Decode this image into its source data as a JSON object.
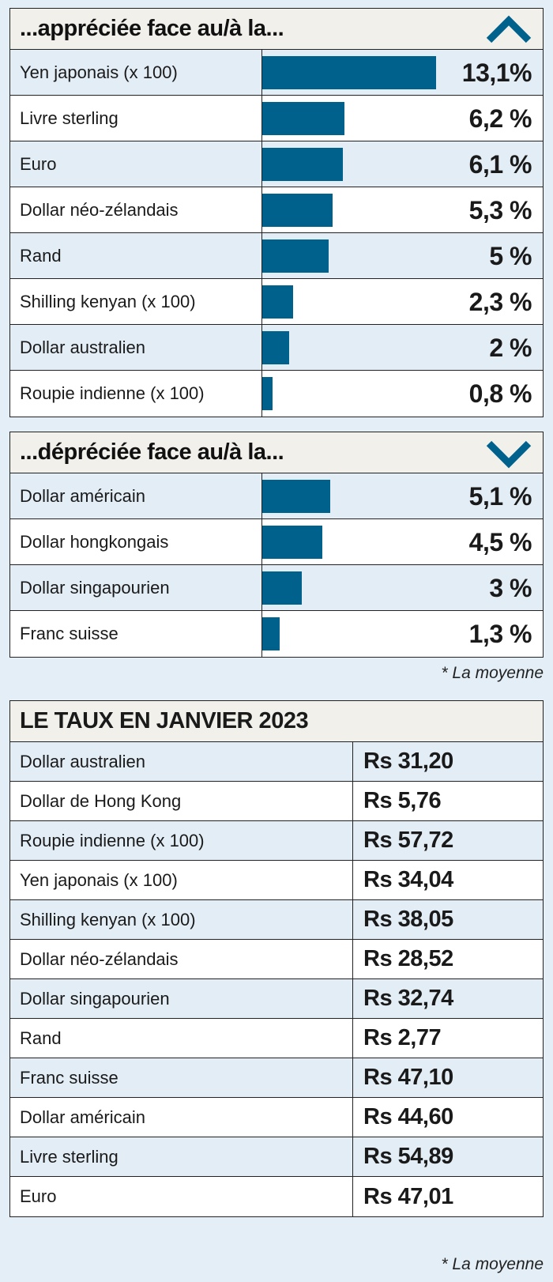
{
  "colors": {
    "bar": "#00618c",
    "background": "#e4eef6",
    "header": "#f1f0eb",
    "row_shade": "#e3edf5"
  },
  "appreciated": {
    "title": "...appréciée face au/à la...",
    "icon": "chevron-up-icon"
  },
  "depreciated": {
    "title": "...dépréciée face au/à la...",
    "icon": "chevron-down-icon"
  },
  "note1": "* La moyenne",
  "rates": {
    "title": "LE TAUX EN JANVIER 2023",
    "rows": [
      {
        "name": "Dollar australien",
        "value": "Rs 31,20"
      },
      {
        "name": "Dollar de Hong Kong",
        "value": "Rs 5,76"
      },
      {
        "name": "Roupie indienne (x 100)",
        "value": "Rs 57,72"
      },
      {
        "name": "Yen japonais (x 100)",
        "value": "Rs 34,04"
      },
      {
        "name": "Shilling kenyan (x 100)",
        "value": "Rs 38,05"
      },
      {
        "name": "Dollar néo-zélandais",
        "value": "Rs 28,52"
      },
      {
        "name": "Dollar singapourien",
        "value": "Rs 32,74"
      },
      {
        "name": "Rand",
        "value": "Rs 2,77"
      },
      {
        "name": "Franc suisse",
        "value": "Rs 47,10"
      },
      {
        "name": "Dollar américain",
        "value": "Rs 44,60"
      },
      {
        "name": "Livre sterling",
        "value": "Rs 54,89"
      },
      {
        "name": "Euro",
        "value": "Rs 47,01"
      }
    ]
  },
  "note2": "* La moyenne",
  "chart_data": [
    {
      "type": "bar",
      "orientation": "horizontal",
      "title": "...appréciée face au/à la...",
      "categories": [
        "Yen japonais (x 100)",
        "Livre sterling",
        "Euro",
        "Dollar néo-zélandais",
        "Rand",
        "Shilling kenyan (x 100)",
        "Dollar australien",
        "Roupie indienne (x 100)"
      ],
      "values": [
        13.1,
        6.2,
        6.1,
        5.3,
        5,
        2.3,
        2,
        0.8
      ],
      "labels": [
        "13,1%",
        "6,2 %",
        "6,1 %",
        "5,3 %",
        "5 %",
        "2,3 %",
        "2 %",
        "0,8 %"
      ],
      "xlim": [
        0,
        13.1
      ]
    },
    {
      "type": "bar",
      "orientation": "horizontal",
      "title": "...dépréciée face au/à la...",
      "categories": [
        "Dollar américain",
        "Dollar hongkongais",
        "Dollar singapourien",
        "Franc suisse"
      ],
      "values": [
        5.1,
        4.5,
        3,
        1.3
      ],
      "labels": [
        "5,1 %",
        "4,5 %",
        "3 %",
        "1,3 %"
      ],
      "xlim": [
        0,
        13.1
      ]
    }
  ]
}
